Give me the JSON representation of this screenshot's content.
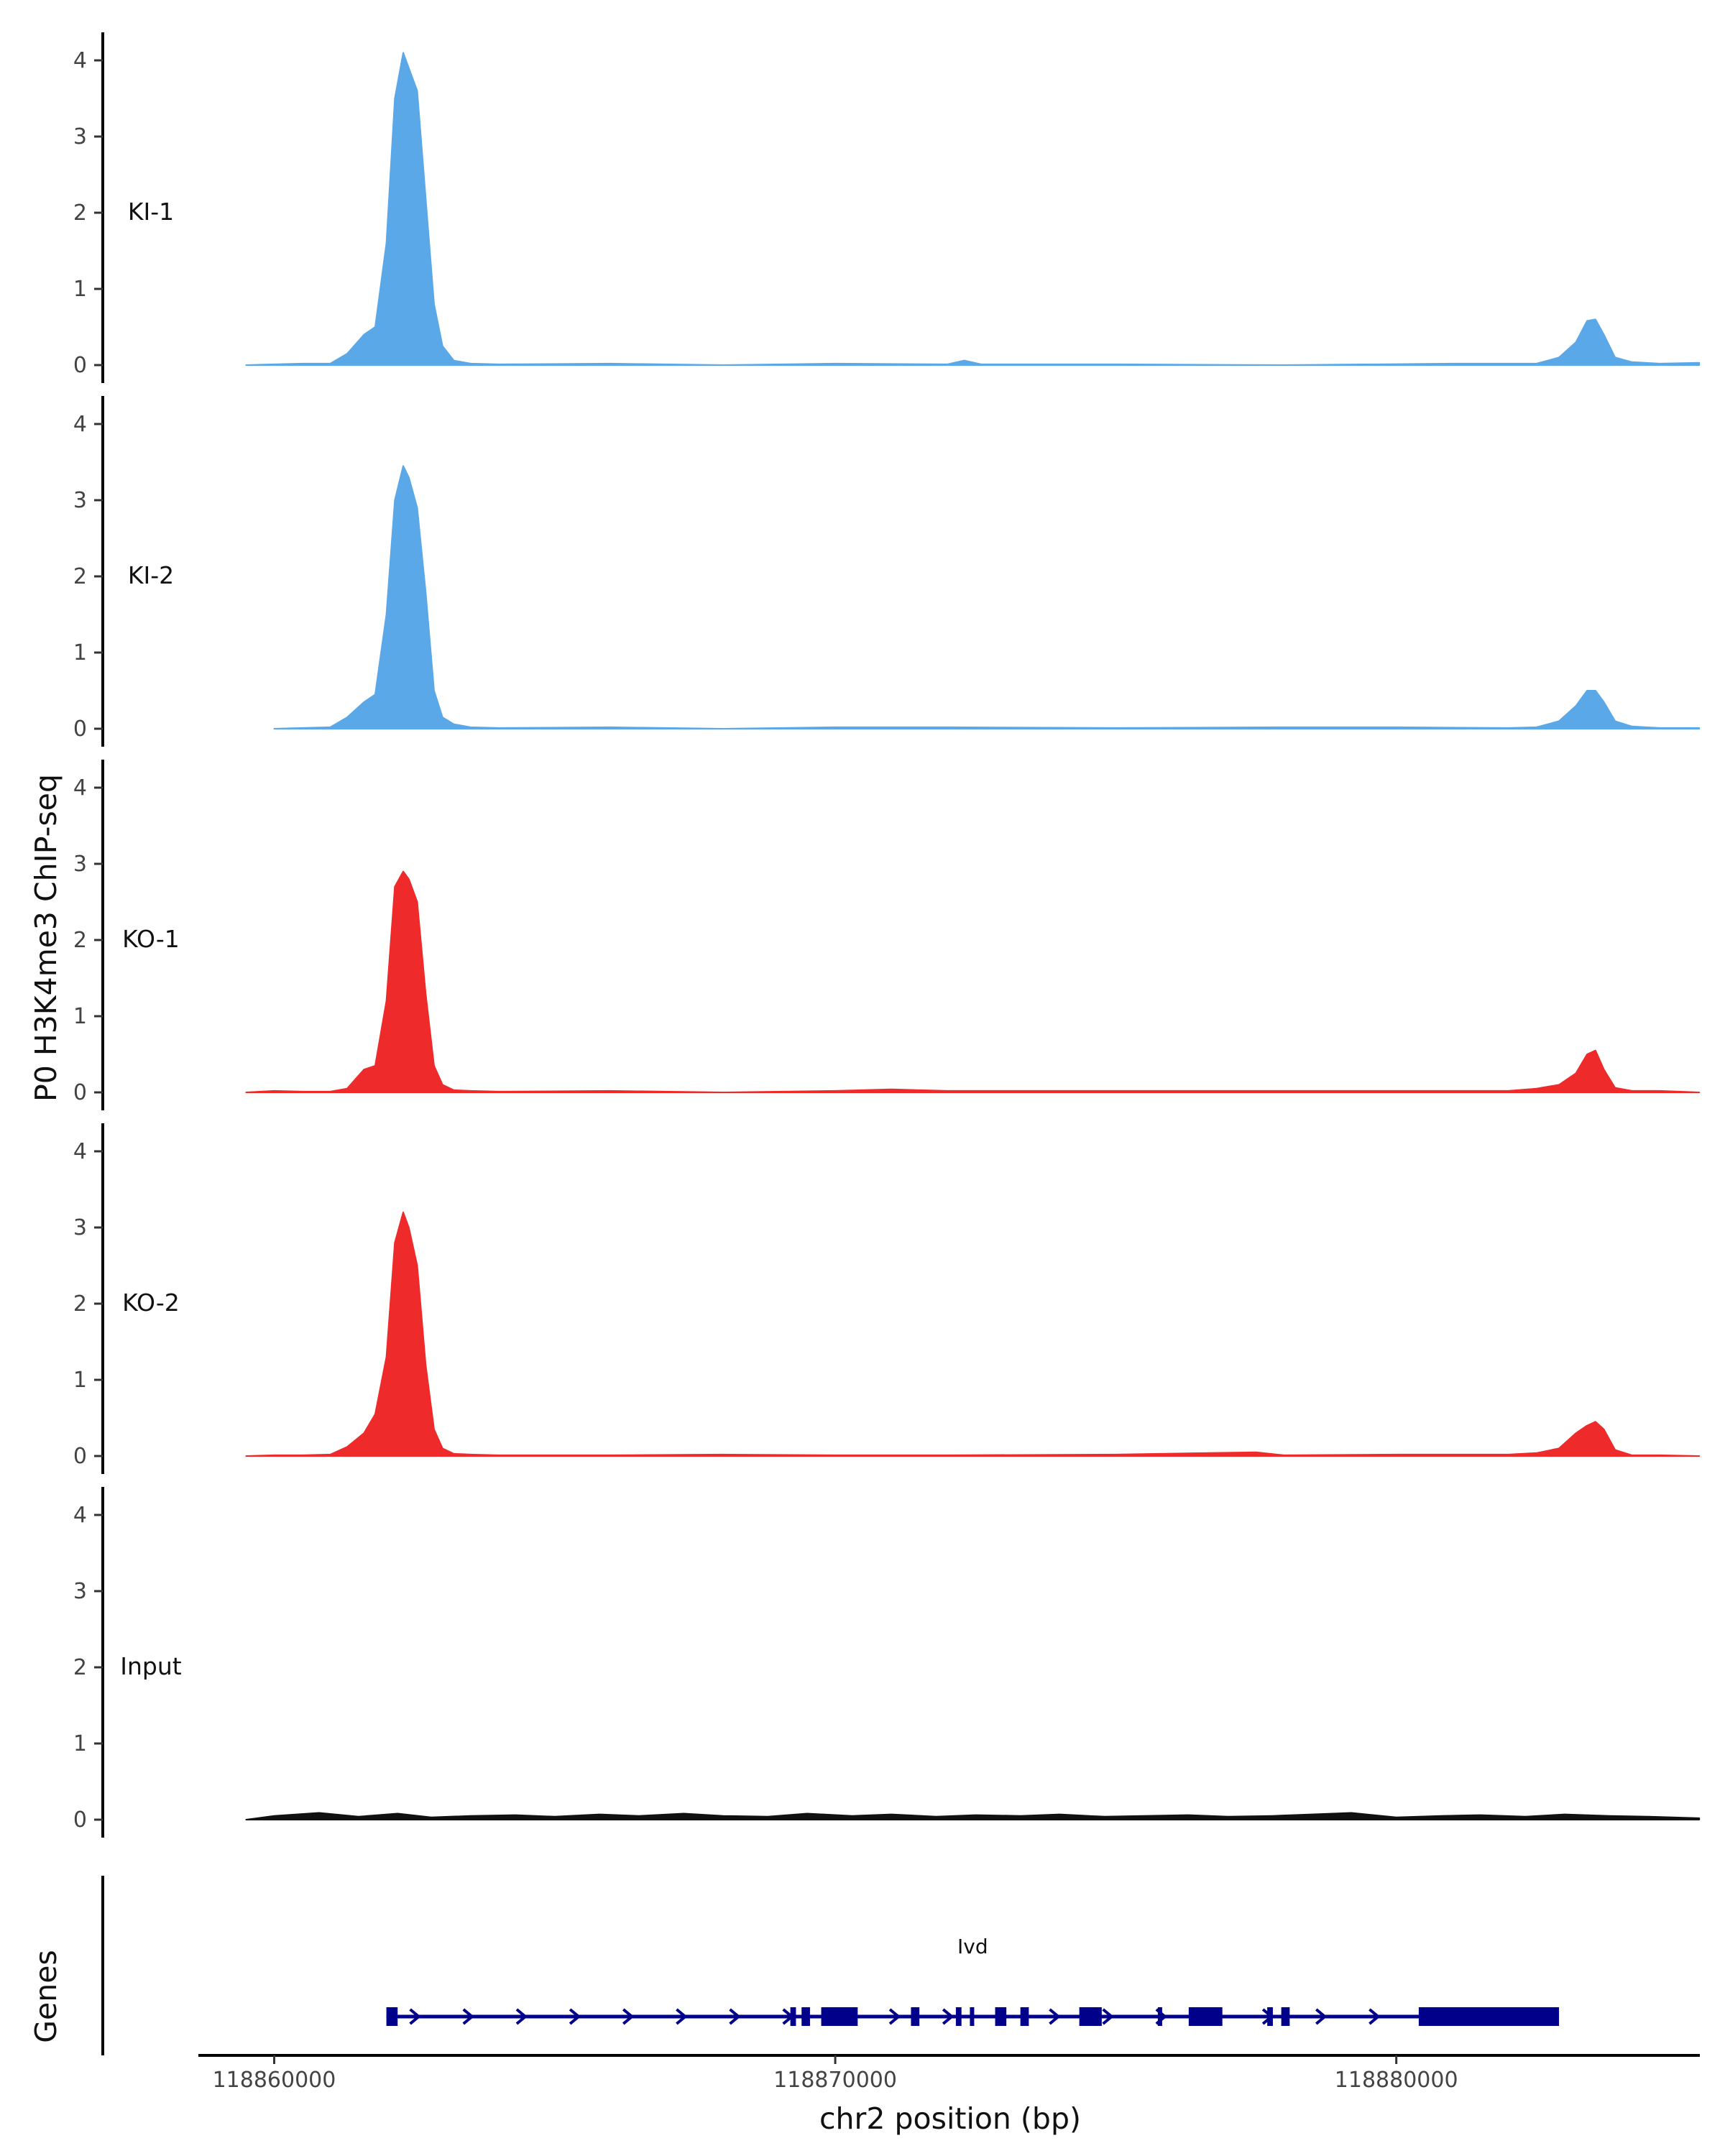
{
  "chart_data": {
    "type": "area",
    "y_axis_title": "P0 H3K4me3 ChIP-seq",
    "genes_axis_title": "Genes",
    "x_axis_title": "chr2 position (bp)",
    "x_range": [
      118858700,
      118885500
    ],
    "x_ticks": [
      118860000,
      118870000,
      118880000
    ],
    "y_range": [
      0,
      4.3
    ],
    "y_ticks": [
      0,
      1,
      2,
      3,
      4
    ],
    "grid": false,
    "tracks": [
      {
        "label": "KI-1",
        "color": "#5aa8e8",
        "x": [
          118859500,
          118860000,
          118860500,
          118861000,
          118861300,
          118861600,
          118861800,
          118862000,
          118862150,
          118862300,
          118862400,
          118862550,
          118862700,
          118862850,
          118863000,
          118863200,
          118863500,
          118864000,
          118866000,
          118868000,
          118870000,
          118872000,
          118872300,
          118872600,
          118875000,
          118878000,
          118881000,
          118882500,
          118882900,
          118883200,
          118883400,
          118883550,
          118883700,
          118883900,
          118884200,
          118884700,
          118885400
        ],
        "y": [
          0,
          0.01,
          0.02,
          0.02,
          0.15,
          0.4,
          0.5,
          1.6,
          3.5,
          4.1,
          3.9,
          3.6,
          2.2,
          0.8,
          0.25,
          0.06,
          0.02,
          0.01,
          0.02,
          0,
          0.02,
          0.01,
          0.06,
          0.01,
          0.01,
          0,
          0.02,
          0.02,
          0.1,
          0.3,
          0.58,
          0.6,
          0.4,
          0.1,
          0.04,
          0.02,
          0.03
        ]
      },
      {
        "label": "KI-2",
        "color": "#5aa8e8",
        "x": [
          118860000,
          118860500,
          118861000,
          118861300,
          118861600,
          118861800,
          118862000,
          118862150,
          118862300,
          118862400,
          118862550,
          118862700,
          118862850,
          118863000,
          118863200,
          118863500,
          118864000,
          118866000,
          118868000,
          118870000,
          118872000,
          118875000,
          118878000,
          118880000,
          118882000,
          118882500,
          118882900,
          118883200,
          118883400,
          118883550,
          118883700,
          118883900,
          118884200,
          118884700,
          118885400
        ],
        "y": [
          0,
          0.01,
          0.02,
          0.15,
          0.35,
          0.45,
          1.5,
          3.0,
          3.45,
          3.3,
          2.9,
          1.8,
          0.5,
          0.15,
          0.06,
          0.02,
          0.01,
          0.02,
          0,
          0.02,
          0.02,
          0.01,
          0.02,
          0.02,
          0.01,
          0.02,
          0.1,
          0.3,
          0.5,
          0.5,
          0.35,
          0.1,
          0.03,
          0.01,
          0.01
        ]
      },
      {
        "label": "KO-1",
        "color": "#ee2a2a",
        "x": [
          118859500,
          118860000,
          118860500,
          118861000,
          118861300,
          118861600,
          118861800,
          118862000,
          118862150,
          118862300,
          118862400,
          118862550,
          118862700,
          118862850,
          118863000,
          118863200,
          118863500,
          118864000,
          118866000,
          118868000,
          118870000,
          118871000,
          118872000,
          118875000,
          118878000,
          118880000,
          118882000,
          118882500,
          118882900,
          118883200,
          118883400,
          118883550,
          118883700,
          118883900,
          118884200,
          118884700,
          118885400
        ],
        "y": [
          0,
          0.02,
          0.01,
          0.01,
          0.05,
          0.3,
          0.35,
          1.2,
          2.7,
          2.9,
          2.8,
          2.5,
          1.3,
          0.35,
          0.1,
          0.03,
          0.02,
          0.01,
          0.02,
          0,
          0.02,
          0.04,
          0.02,
          0.02,
          0.02,
          0.02,
          0.02,
          0.05,
          0.1,
          0.25,
          0.5,
          0.55,
          0.3,
          0.06,
          0.02,
          0.02,
          0
        ]
      },
      {
        "label": "KO-2",
        "color": "#ee2a2a",
        "x": [
          118859500,
          118860000,
          118860500,
          118861000,
          118861300,
          118861600,
          118861800,
          118862000,
          118862150,
          118862300,
          118862400,
          118862550,
          118862700,
          118862850,
          118863000,
          118863200,
          118863500,
          118864000,
          118866000,
          118868000,
          118870000,
          118872000,
          118875000,
          118877500,
          118878000,
          118880000,
          118882000,
          118882500,
          118882900,
          118883200,
          118883400,
          118883550,
          118883700,
          118883900,
          118884200,
          118884700,
          118885400
        ],
        "y": [
          0,
          0.01,
          0.01,
          0.02,
          0.12,
          0.3,
          0.55,
          1.3,
          2.8,
          3.2,
          3.0,
          2.5,
          1.2,
          0.35,
          0.1,
          0.03,
          0.02,
          0.01,
          0.01,
          0.02,
          0.01,
          0.01,
          0.02,
          0.05,
          0.01,
          0.02,
          0.02,
          0.04,
          0.1,
          0.3,
          0.4,
          0.45,
          0.35,
          0.08,
          0.01,
          0.01,
          0
        ]
      },
      {
        "label": "Input",
        "color": "#111111",
        "x": [
          118859500,
          118860000,
          118860800,
          118861500,
          118862200,
          118862800,
          118863500,
          118864300,
          118865000,
          118865800,
          118866500,
          118867300,
          118868000,
          118868800,
          118869500,
          118870300,
          118871000,
          118871800,
          118872500,
          118873300,
          118874000,
          118874800,
          118875500,
          118876300,
          118877000,
          118877800,
          118878500,
          118879200,
          118880000,
          118880800,
          118881500,
          118882300,
          118883000,
          118883800,
          118884500,
          118885400
        ],
        "y": [
          0,
          0.05,
          0.09,
          0.04,
          0.08,
          0.03,
          0.05,
          0.06,
          0.04,
          0.07,
          0.05,
          0.08,
          0.05,
          0.04,
          0.08,
          0.05,
          0.07,
          0.04,
          0.06,
          0.05,
          0.07,
          0.04,
          0.05,
          0.06,
          0.04,
          0.05,
          0.07,
          0.09,
          0.03,
          0.05,
          0.06,
          0.04,
          0.07,
          0.05,
          0.04,
          0.02
        ]
      }
    ],
    "gene": {
      "name": "Ivd",
      "color": "#00008b",
      "start": 118862000,
      "end": 118882900,
      "exons": [
        [
          118862000,
          118862200
        ],
        [
          118869200,
          118869300
        ],
        [
          118869400,
          118869550
        ],
        [
          118869750,
          118870400
        ],
        [
          118871350,
          118871500
        ],
        [
          118872150,
          118872250
        ],
        [
          118872400,
          118872450
        ],
        [
          118872850,
          118873050
        ],
        [
          118873300,
          118873450
        ],
        [
          118874350,
          118874750
        ],
        [
          118875750,
          118875800
        ],
        [
          118876300,
          118876900
        ],
        [
          118877700,
          118877800
        ],
        [
          118877950,
          118878100
        ],
        [
          118880400,
          118882900
        ]
      ]
    }
  }
}
